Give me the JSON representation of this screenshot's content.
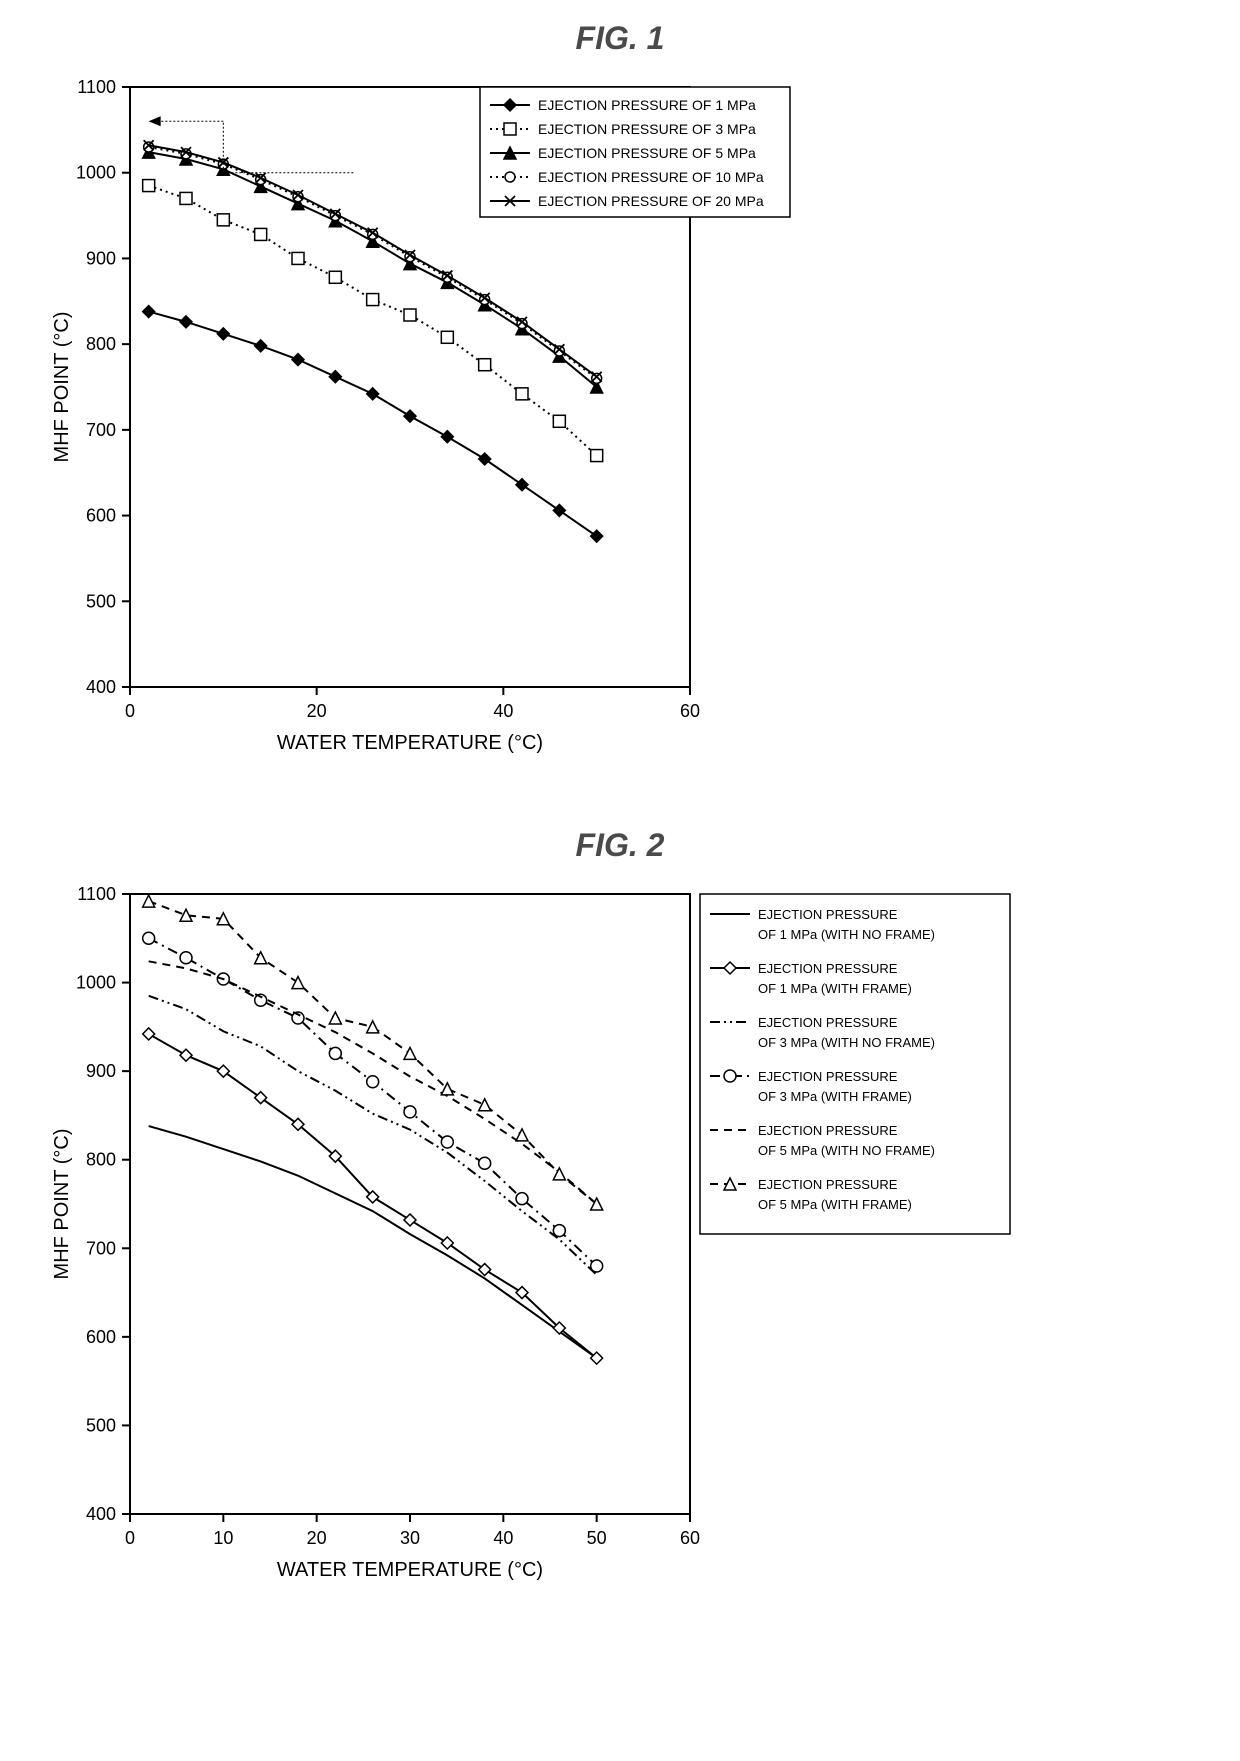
{
  "figure1": {
    "title": "FIG. 1",
    "type": "line",
    "xlabel": "WATER TEMPERATURE (°C)",
    "ylabel": "MHF POINT (°C)",
    "xlim": [
      0,
      60
    ],
    "ylim": [
      400,
      1100
    ],
    "xtick_step": 20,
    "ytick_step": 100,
    "plot_bg": "#ffffff",
    "border_color": "#000000",
    "tick_fontsize": 18,
    "label_fontsize": 20,
    "legend_fontsize": 14,
    "legend_border": "#000000",
    "arrow_dash": "2,2",
    "series": [
      {
        "name": "EJECTION PRESSURE OF 1 MPa",
        "color": "#000000",
        "line_style": "solid",
        "line_width": 2,
        "marker": "diamond-filled",
        "marker_size": 6,
        "x": [
          2,
          6,
          10,
          14,
          18,
          22,
          26,
          30,
          34,
          38,
          42,
          46,
          50
        ],
        "y": [
          838,
          826,
          812,
          798,
          782,
          762,
          742,
          716,
          692,
          666,
          636,
          606,
          576
        ]
      },
      {
        "name": "EJECTION PRESSURE OF 3 MPa",
        "color": "#000000",
        "line_style": "dotted",
        "line_width": 2,
        "marker": "square-open",
        "marker_size": 6,
        "x": [
          2,
          6,
          10,
          14,
          18,
          22,
          26,
          30,
          34,
          38,
          42,
          46,
          50
        ],
        "y": [
          985,
          970,
          945,
          928,
          900,
          878,
          852,
          834,
          808,
          776,
          742,
          710,
          670
        ]
      },
      {
        "name": "EJECTION PRESSURE OF 5 MPa",
        "color": "#000000",
        "line_style": "solid",
        "line_width": 2,
        "marker": "triangle-filled",
        "marker_size": 6,
        "x": [
          2,
          6,
          10,
          14,
          18,
          22,
          26,
          30,
          34,
          38,
          42,
          46,
          50
        ],
        "y": [
          1024,
          1016,
          1004,
          984,
          964,
          944,
          920,
          894,
          872,
          846,
          818,
          786,
          750
        ]
      },
      {
        "name": "EJECTION PRESSURE OF 10 MPa",
        "color": "#000000",
        "line_style": "dotted",
        "line_width": 2,
        "marker": "circle-open",
        "marker_size": 5,
        "x": [
          2,
          6,
          10,
          14,
          18,
          22,
          26,
          30,
          34,
          38,
          42,
          46,
          50
        ],
        "y": [
          1030,
          1022,
          1010,
          992,
          972,
          950,
          928,
          902,
          878,
          852,
          824,
          792,
          760
        ]
      },
      {
        "name": "EJECTION PRESSURE OF 20 MPa",
        "color": "#000000",
        "line_style": "solid",
        "line_width": 2,
        "marker": "x",
        "marker_size": 5,
        "x": [
          2,
          6,
          10,
          14,
          18,
          22,
          26,
          30,
          34,
          38,
          42,
          46,
          50
        ],
        "y": [
          1032,
          1024,
          1012,
          994,
          974,
          952,
          930,
          904,
          880,
          854,
          826,
          794,
          762
        ]
      }
    ]
  },
  "figure2": {
    "title": "FIG. 2",
    "type": "line",
    "xlabel": "WATER TEMPERATURE (°C)",
    "ylabel": "MHF POINT (°C)",
    "xlim": [
      0,
      60
    ],
    "ylim": [
      400,
      1100
    ],
    "xtick_step": 10,
    "ytick_step": 100,
    "plot_bg": "#ffffff",
    "border_color": "#000000",
    "tick_fontsize": 18,
    "label_fontsize": 20,
    "legend_fontsize": 13,
    "legend_border": "#000000",
    "series": [
      {
        "name_line1": "EJECTION PRESSURE",
        "name_line2": "OF 1 MPa (WITH NO FRAME)",
        "color": "#000000",
        "line_style": "solid",
        "line_width": 2,
        "marker": "none",
        "x": [
          2,
          6,
          10,
          14,
          18,
          22,
          26,
          30,
          34,
          38,
          42,
          46,
          50
        ],
        "y": [
          838,
          826,
          812,
          798,
          782,
          762,
          742,
          716,
          692,
          666,
          636,
          606,
          576
        ]
      },
      {
        "name_line1": "EJECTION PRESSURE",
        "name_line2": "OF 1 MPa (WITH FRAME)",
        "color": "#000000",
        "line_style": "solid",
        "line_width": 2,
        "marker": "diamond-open",
        "marker_size": 6,
        "x": [
          2,
          6,
          10,
          14,
          18,
          22,
          26,
          30,
          34,
          38,
          42,
          46,
          50
        ],
        "y": [
          942,
          918,
          900,
          870,
          840,
          804,
          758,
          732,
          706,
          676,
          650,
          610,
          576
        ]
      },
      {
        "name_line1": "EJECTION PRESSURE",
        "name_line2": "OF 3 MPa (WITH NO FRAME)",
        "color": "#000000",
        "line_style": "dashdotdot",
        "line_width": 2,
        "marker": "none",
        "x": [
          2,
          6,
          10,
          14,
          18,
          22,
          26,
          30,
          34,
          38,
          42,
          46,
          50
        ],
        "y": [
          985,
          970,
          945,
          928,
          900,
          878,
          852,
          834,
          808,
          776,
          742,
          710,
          670
        ]
      },
      {
        "name_line1": "EJECTION PRESSURE",
        "name_line2": "OF 3 MPa (WITH FRAME)",
        "color": "#000000",
        "line_style": "dashdot",
        "line_width": 2,
        "marker": "circle-open",
        "marker_size": 6,
        "x": [
          2,
          6,
          10,
          14,
          18,
          22,
          26,
          30,
          34,
          38,
          42,
          46,
          50
        ],
        "y": [
          1050,
          1028,
          1004,
          980,
          960,
          920,
          888,
          854,
          820,
          796,
          756,
          720,
          680
        ]
      },
      {
        "name_line1": "EJECTION PRESSURE",
        "name_line2": "OF 5 MPa (WITH NO FRAME)",
        "color": "#000000",
        "line_style": "dashed",
        "line_width": 2,
        "marker": "none",
        "x": [
          2,
          6,
          10,
          14,
          18,
          22,
          26,
          30,
          34,
          38,
          42,
          46,
          50
        ],
        "y": [
          1024,
          1016,
          1004,
          984,
          964,
          944,
          920,
          894,
          872,
          846,
          818,
          786,
          750
        ]
      },
      {
        "name_line1": "EJECTION PRESSURE",
        "name_line2": "OF 5 MPa (WITH FRAME)",
        "color": "#000000",
        "line_style": "dashed",
        "line_width": 2,
        "marker": "triangle-open",
        "marker_size": 6,
        "x": [
          2,
          6,
          10,
          14,
          18,
          22,
          26,
          30,
          34,
          38,
          42,
          46,
          50
        ],
        "y": [
          1092,
          1076,
          1072,
          1028,
          1000,
          960,
          950,
          920,
          880,
          862,
          828,
          784,
          750
        ]
      }
    ]
  }
}
